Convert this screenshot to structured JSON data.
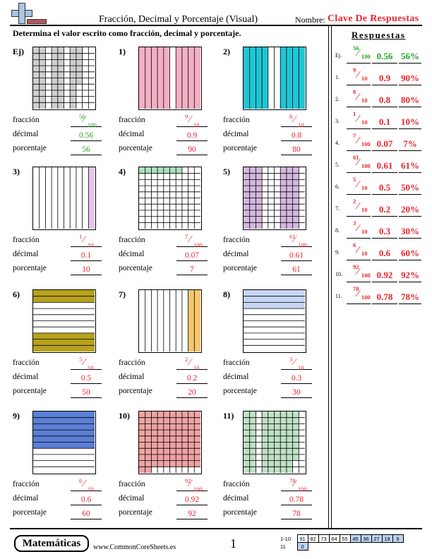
{
  "header": {
    "title": "Fracción, Decimal y Porcentaje (Visual)",
    "name_label": "Nombre:",
    "name_value": "Clave De Respuestas"
  },
  "instructions": "Determina el valor escrito como fracción, decimal y porcentaje.",
  "labels": {
    "fraction": "fracción",
    "decimal": "décimal",
    "percent": "porcentaje"
  },
  "problems": [
    {
      "id": "Ej)",
      "num": "56",
      "den": "100",
      "dec": "0.56",
      "pct": "56",
      "color": "#cfcfcf",
      "grid": "cols10x10",
      "fill": 56,
      "example": true
    },
    {
      "id": "1)",
      "num": "9",
      "den": "10",
      "dec": "0.9",
      "pct": "90",
      "color": "#f4afc3",
      "grid": "cols10",
      "fill": [
        0,
        1,
        2,
        3,
        4,
        6,
        7,
        8,
        9
      ]
    },
    {
      "id": "2)",
      "num": "8",
      "den": "10",
      "dec": "0.8",
      "pct": "80",
      "color": "#1fc6d6",
      "grid": "cols10",
      "fill": [
        0,
        1,
        2,
        3,
        6,
        7,
        8,
        9
      ]
    },
    {
      "id": "3)",
      "num": "1",
      "den": "10",
      "dec": "0.1",
      "pct": "10",
      "color": "#e5c6ea",
      "grid": "cols10",
      "fill": [
        9
      ]
    },
    {
      "id": "4)",
      "num": "7",
      "den": "100",
      "dec": "0.07",
      "pct": "7",
      "color": "#a9e0c0",
      "grid": "grid100",
      "fill": [
        0,
        1,
        2,
        3,
        4,
        5,
        6
      ]
    },
    {
      "id": "5)",
      "num": "61",
      "den": "100",
      "dec": "0.61",
      "pct": "61",
      "color": "#d3b8e0",
      "grid": "grid100",
      "fill": "cols5"
    },
    {
      "id": "6)",
      "num": "5",
      "den": "10",
      "dec": "0.5",
      "pct": "50",
      "color": "#b8a21c",
      "grid": "rows10",
      "fill": [
        0,
        1,
        7,
        8,
        9
      ]
    },
    {
      "id": "7)",
      "num": "2",
      "den": "10",
      "dec": "0.2",
      "pct": "20",
      "color": "#f6c76b",
      "grid": "cols10",
      "fill": [
        8,
        9
      ]
    },
    {
      "id": "8)",
      "num": "3",
      "den": "10",
      "dec": "0.3",
      "pct": "30",
      "color": "#c6d6f2",
      "grid": "rows10",
      "fill": [
        0,
        1,
        2
      ]
    },
    {
      "id": "9)",
      "num": "6",
      "den": "10",
      "dec": "0.6",
      "pct": "60",
      "color": "#5a7fd4",
      "grid": "rows10",
      "fill": [
        0,
        1,
        2,
        3,
        4,
        5
      ]
    },
    {
      "id": "10)",
      "num": "92",
      "den": "100",
      "dec": "0.92",
      "pct": "92",
      "color": "#f0a3a3",
      "grid": "grid100",
      "fill": "first92"
    },
    {
      "id": "11)",
      "num": "78",
      "den": "100",
      "dec": "0.78",
      "pct": "78",
      "color": "#bfe2c6",
      "grid": "grid100",
      "fill": "cols11"
    }
  ],
  "answers": {
    "title": "Respuestas",
    "rows": [
      {
        "key": "Ej.",
        "num": "56",
        "den": "100",
        "dec": "0.56",
        "pct": "56%"
      },
      {
        "key": "1.",
        "num": "9",
        "den": "10",
        "dec": "0.9",
        "pct": "90%"
      },
      {
        "key": "2.",
        "num": "8",
        "den": "10",
        "dec": "0.8",
        "pct": "80%"
      },
      {
        "key": "3.",
        "num": "1",
        "den": "10",
        "dec": "0.1",
        "pct": "10%"
      },
      {
        "key": "4.",
        "num": "7",
        "den": "100",
        "dec": "0.07",
        "pct": "7%"
      },
      {
        "key": "5.",
        "num": "61",
        "den": "100",
        "dec": "0.61",
        "pct": "61%"
      },
      {
        "key": "6.",
        "num": "5",
        "den": "10",
        "dec": "0.5",
        "pct": "50%"
      },
      {
        "key": "7.",
        "num": "2",
        "den": "10",
        "dec": "0.2",
        "pct": "20%"
      },
      {
        "key": "8.",
        "num": "3",
        "den": "10",
        "dec": "0.3",
        "pct": "30%"
      },
      {
        "key": "9.",
        "num": "6",
        "den": "10",
        "dec": "0.6",
        "pct": "60%"
      },
      {
        "key": "10.",
        "num": "92",
        "den": "100",
        "dec": "0.92",
        "pct": "92%"
      },
      {
        "key": "11.",
        "num": "78",
        "den": "100",
        "dec": "0.78",
        "pct": "78%"
      }
    ]
  },
  "footer": {
    "brand": "Matemáticas",
    "site": "www.CommonCoreSheets.es",
    "page": "1",
    "score_rows": [
      {
        "label": "1-10",
        "cells": [
          "91",
          "82",
          "73",
          "64",
          "55",
          "45",
          "36",
          "27",
          "18",
          "9"
        ]
      },
      {
        "label": "11",
        "cells": [
          "0"
        ]
      }
    ]
  }
}
